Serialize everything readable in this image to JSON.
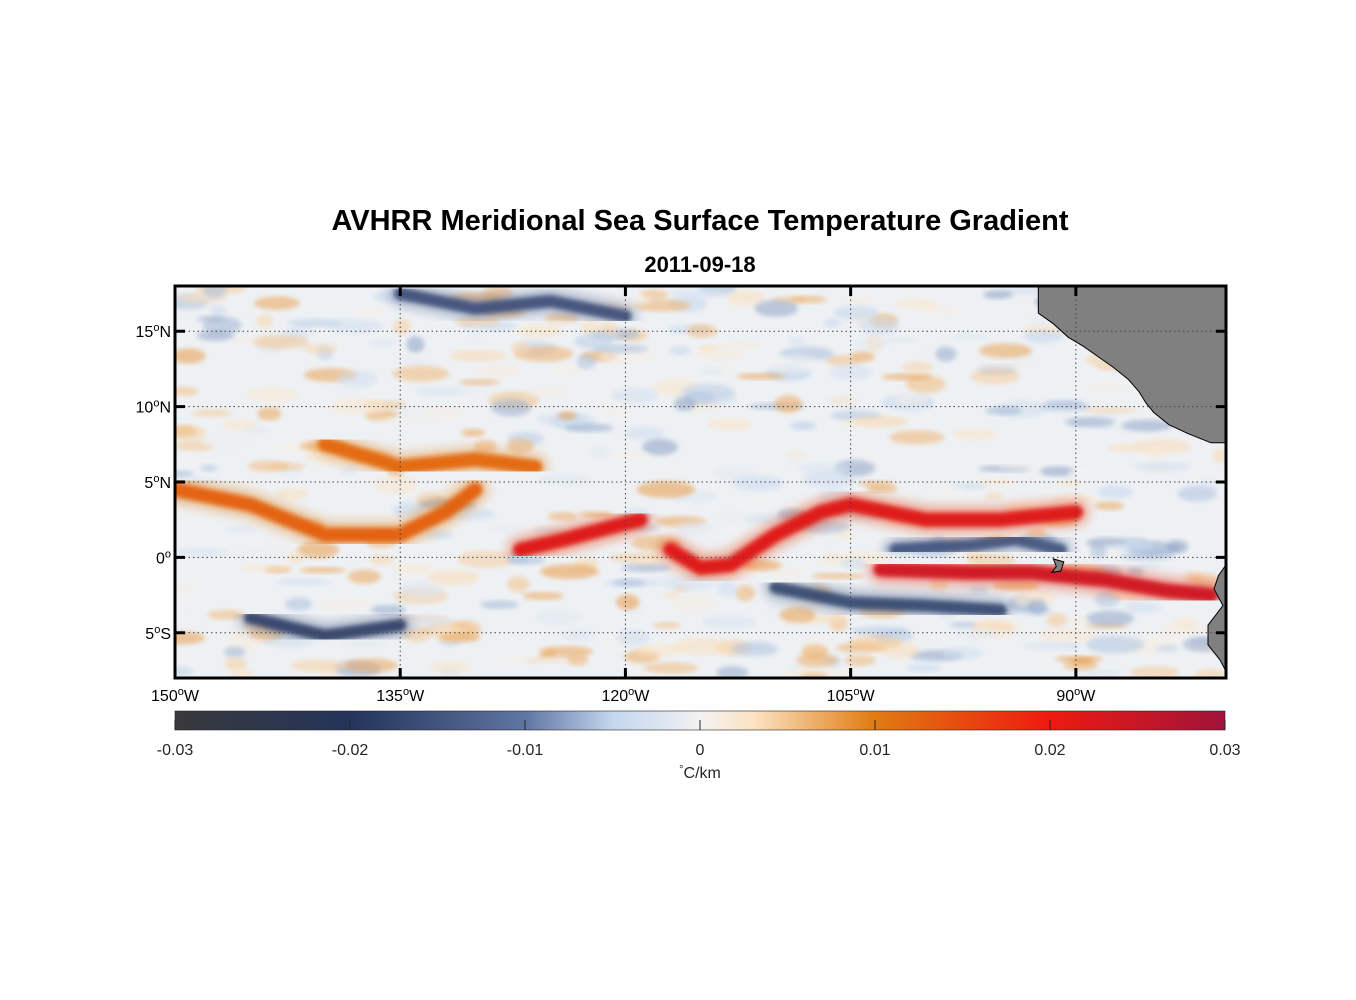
{
  "figure": {
    "title": "AVHRR Meridional Sea Surface Temperature Gradient",
    "subtitle": "2011-09-18"
  },
  "chart_data": {
    "type": "heatmap",
    "title": "AVHRR Meridional Sea Surface Temperature Gradient",
    "subtitle": "2011-09-18",
    "lon_range": [
      -150,
      -80
    ],
    "lat_range": [
      -8,
      18
    ],
    "lon_ticks": [
      {
        "value": -150,
        "deg": "150",
        "suffix": "W"
      },
      {
        "value": -135,
        "deg": "135",
        "suffix": "W"
      },
      {
        "value": -120,
        "deg": "120",
        "suffix": "W"
      },
      {
        "value": -105,
        "deg": "105",
        "suffix": "W"
      },
      {
        "value": -90,
        "deg": "90",
        "suffix": "W"
      }
    ],
    "lat_ticks": [
      {
        "value": 15,
        "deg": "15",
        "suffix": "N"
      },
      {
        "value": 10,
        "deg": "10",
        "suffix": "N"
      },
      {
        "value": 5,
        "deg": "5",
        "suffix": "N"
      },
      {
        "value": 0,
        "deg": "0",
        "suffix": ""
      },
      {
        "value": -5,
        "deg": "5",
        "suffix": "S"
      }
    ],
    "grid": true,
    "colorbar": {
      "range": [
        -0.03,
        0.03
      ],
      "ticks": [
        "-0.03",
        "-0.02",
        "-0.01",
        "0",
        "0.01",
        "0.02",
        "0.03"
      ],
      "tick_values": [
        -0.03,
        -0.02,
        -0.01,
        0,
        0.01,
        0.02,
        0.03
      ],
      "label_pre": "°",
      "label_unit": "C/km",
      "colors": [
        {
          "v": -0.03,
          "c": "#38393b"
        },
        {
          "v": -0.02,
          "c": "#24345a"
        },
        {
          "v": -0.01,
          "c": "#5f75a2"
        },
        {
          "v": -0.005,
          "c": "#c2d6ee"
        },
        {
          "v": 0,
          "c": "#f2f2f2"
        },
        {
          "v": 0.003,
          "c": "#fbe3c4"
        },
        {
          "v": 0.01,
          "c": "#e07b10"
        },
        {
          "v": 0.02,
          "c": "#ee1a10"
        },
        {
          "v": 0.03,
          "c": "#a0133a"
        }
      ]
    },
    "features": {
      "positive_fronts": [
        {
          "name": "north-equatorial-front-west",
          "points": [
            [
              -150,
              4.5
            ],
            [
              -145,
              3.5
            ],
            [
              -140,
              1.5
            ],
            [
              -135,
              1.5
            ],
            [
              -132,
              3
            ],
            [
              -130,
              4.5
            ]
          ],
          "value": 0.013
        },
        {
          "name": "tiw-front-central",
          "points": [
            [
              -127,
              0.5
            ],
            [
              -124,
              1.2
            ],
            [
              -121,
              2.0
            ],
            [
              -119,
              2.5
            ]
          ],
          "value": 0.022
        },
        {
          "name": "tiw-front-east",
          "points": [
            [
              -117,
              0.5
            ],
            [
              -115,
              -0.7
            ],
            [
              -113,
              -0.5
            ],
            [
              -110,
              1.5
            ],
            [
              -107,
              3
            ],
            [
              -105,
              3.5
            ],
            [
              -100,
              2.5
            ],
            [
              -95,
              2.5
            ],
            [
              -90,
              3
            ]
          ],
          "value": 0.022
        },
        {
          "name": "equatorial-front-south",
          "points": [
            [
              -103,
              -0.8
            ],
            [
              -97,
              -1
            ],
            [
              -93,
              -1
            ],
            [
              -88,
              -1.5
            ],
            [
              -84,
              -2.2
            ],
            [
              -81,
              -2.5
            ]
          ],
          "value": 0.024
        },
        {
          "name": "north-band",
          "points": [
            [
              -140,
              7.5
            ],
            [
              -135,
              6
            ],
            [
              -130,
              6.5
            ],
            [
              -126,
              6
            ]
          ],
          "value": 0.012
        }
      ],
      "negative_bands": [
        {
          "name": "south-cold-band-1",
          "points": [
            [
              -145,
              -4
            ],
            [
              -140,
              -5.2
            ],
            [
              -135,
              -4.5
            ]
          ],
          "value": -0.018
        },
        {
          "name": "south-cold-band-2",
          "points": [
            [
              -110,
              -2
            ],
            [
              -105,
              -3
            ],
            [
              -100,
              -3.2
            ],
            [
              -95,
              -3.5
            ]
          ],
          "value": -0.017
        },
        {
          "name": "north-cold-band",
          "points": [
            [
              -135,
              17.5
            ],
            [
              -130,
              16.5
            ],
            [
              -125,
              17
            ],
            [
              -120,
              16
            ]
          ],
          "value": -0.016
        },
        {
          "name": "equatorial-cold-core",
          "points": [
            [
              -102,
              0.5
            ],
            [
              -97,
              0.8
            ],
            [
              -94,
              1.2
            ],
            [
              -91,
              0.5
            ]
          ],
          "value": -0.015
        }
      ]
    },
    "land": {
      "color": "#808080"
    }
  }
}
